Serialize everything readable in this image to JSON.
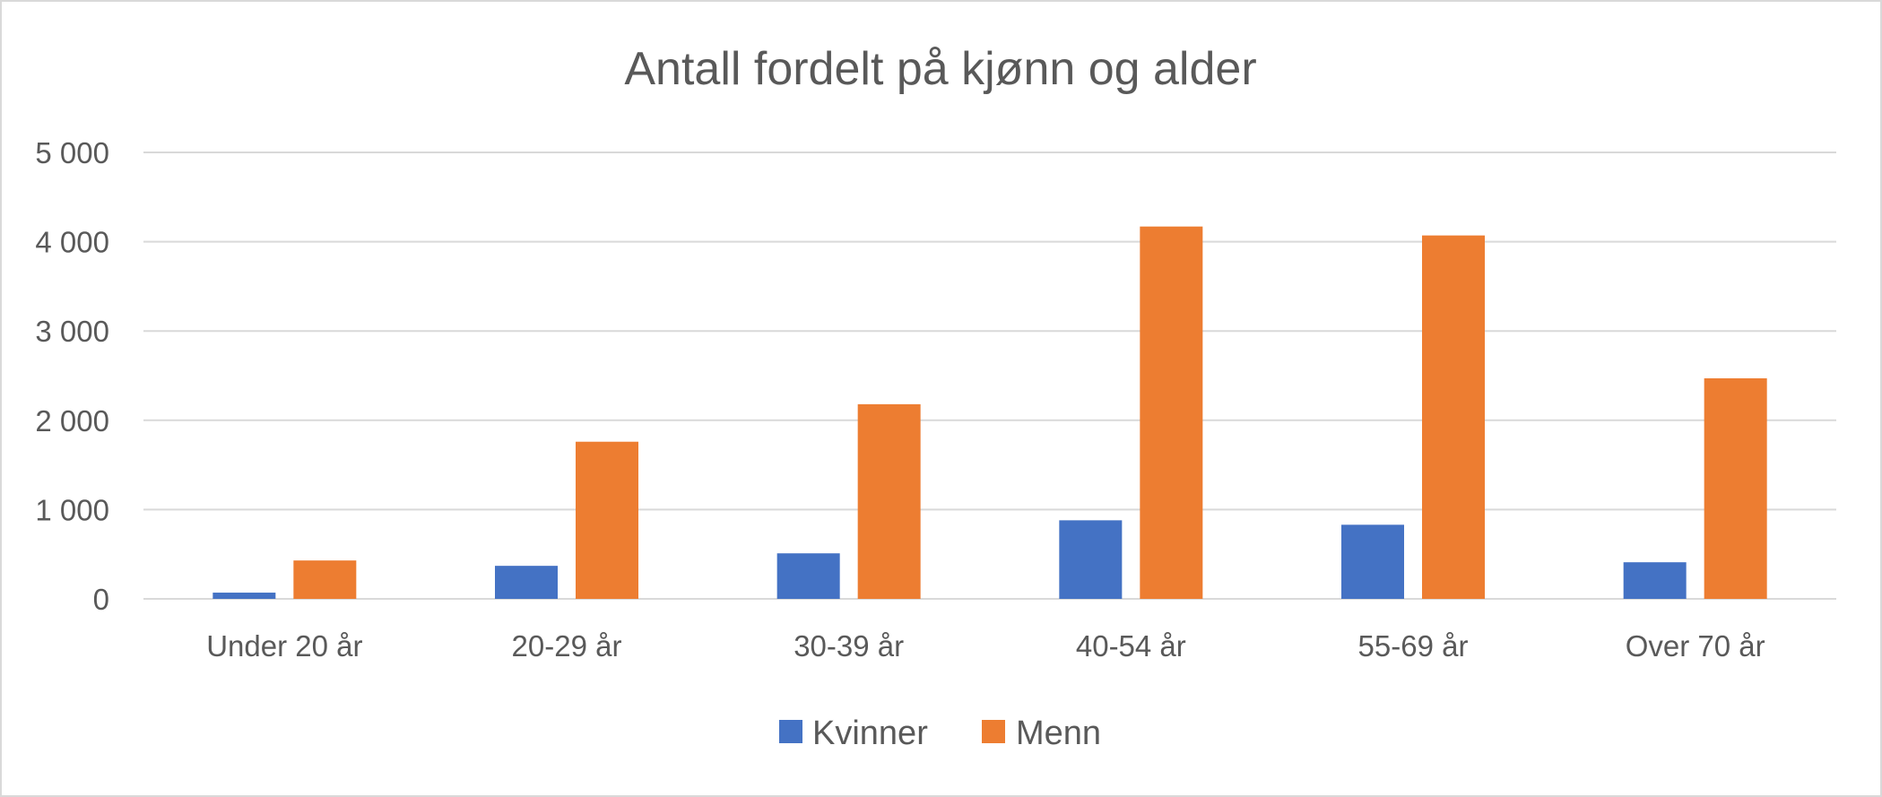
{
  "chart_data": {
    "type": "bar",
    "title": "Antall fordelt på kjønn og alder",
    "categories": [
      "Under 20 år",
      "20-29 år",
      "30-39 år",
      "40-54 år",
      "55-69 år",
      "Over 70 år"
    ],
    "series": [
      {
        "name": "Kvinner",
        "color": "#4472C4",
        "values": [
          70,
          370,
          510,
          880,
          830,
          410
        ]
      },
      {
        "name": "Menn",
        "color": "#ED7D31",
        "values": [
          430,
          1760,
          2180,
          4170,
          4070,
          2470
        ]
      }
    ],
    "ylim": [
      0,
      5000
    ],
    "yticks": [
      0,
      1000,
      2000,
      3000,
      4000,
      5000
    ],
    "ytick_labels": [
      "0",
      "1 000",
      "2 000",
      "3 000",
      "4 000",
      "5 000"
    ],
    "grid": true,
    "legend_position": "bottom"
  }
}
